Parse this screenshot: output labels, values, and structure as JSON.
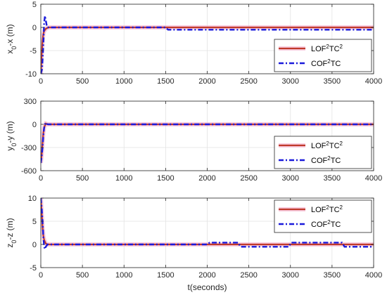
{
  "chart_data": [
    {
      "type": "line",
      "ylabel_base": "x",
      "ylabel_sub": "0",
      "ylabel_rest": "-x (m)",
      "xlim": [
        0,
        4000
      ],
      "ylim": [
        -10,
        5
      ],
      "xticks": [
        0,
        500,
        1000,
        1500,
        2000,
        2500,
        3000,
        3500,
        4000
      ],
      "yticks": [
        -10,
        -5,
        0,
        5
      ],
      "grid": true,
      "legend": "lower-right",
      "series": [
        {
          "name_base": "LOF",
          "name_sup1": "2",
          "name_mid": "TC",
          "name_sup2": "2",
          "color": "#c0392b",
          "x": [
            0,
            10,
            20,
            30,
            40,
            60,
            80,
            100,
            150,
            4000
          ],
          "y": [
            -10,
            -6,
            -3,
            -1.5,
            -0.8,
            -0.3,
            -0.1,
            0,
            0,
            0
          ]
        },
        {
          "name_base": "COF",
          "name_sup1": "2",
          "name_mid": "TC",
          "name_sup2": "",
          "color": "#1a1adb",
          "x": [
            0,
            15,
            30,
            40,
            50,
            60,
            70,
            80,
            100,
            1500,
            1530,
            4000
          ],
          "y": [
            -10,
            -9,
            -4,
            1,
            2.5,
            1.5,
            0.5,
            0,
            0,
            0,
            -0.5,
            -0.5
          ]
        }
      ]
    },
    {
      "type": "line",
      "ylabel_base": "y",
      "ylabel_sub": "0",
      "ylabel_rest": "-y (m)",
      "xlim": [
        0,
        4000
      ],
      "ylim": [
        -600,
        300
      ],
      "xticks": [
        0,
        500,
        1000,
        1500,
        2000,
        2500,
        3000,
        3500,
        4000
      ],
      "yticks": [
        -600,
        -300,
        0,
        300
      ],
      "grid": true,
      "legend": "lower-right",
      "series": [
        {
          "name_base": "LOF",
          "name_sup1": "2",
          "name_mid": "TC",
          "name_sup2": "2",
          "color": "#c0392b",
          "x": [
            0,
            10,
            20,
            30,
            40,
            60,
            80,
            4000
          ],
          "y": [
            -500,
            -400,
            -250,
            -120,
            -40,
            10,
            0,
            0
          ]
        },
        {
          "name_base": "COF",
          "name_sup1": "2",
          "name_mid": "TC",
          "name_sup2": "",
          "color": "#1a1adb",
          "x": [
            0,
            10,
            20,
            30,
            40,
            55,
            70,
            90,
            4000
          ],
          "y": [
            -500,
            -420,
            -300,
            -150,
            -50,
            20,
            5,
            0,
            0
          ]
        }
      ]
    },
    {
      "type": "line",
      "ylabel_base": "z",
      "ylabel_sub": "0",
      "ylabel_rest": "-z (m)",
      "xlabel": "t(seconds)",
      "xlim": [
        0,
        4000
      ],
      "ylim": [
        -5,
        10
      ],
      "xticks": [
        0,
        500,
        1000,
        1500,
        2000,
        2500,
        3000,
        3500,
        4000
      ],
      "yticks": [
        -5,
        0,
        5,
        10
      ],
      "grid": true,
      "legend": "upper-right",
      "series": [
        {
          "name_base": "LOF",
          "name_sup1": "2",
          "name_mid": "TC",
          "name_sup2": "2",
          "color": "#c0392b",
          "x": [
            0,
            10,
            20,
            30,
            40,
            60,
            80,
            4000
          ],
          "y": [
            10,
            7,
            4,
            2,
            1,
            0.2,
            0,
            0
          ]
        },
        {
          "name_base": "COF",
          "name_sup1": "2",
          "name_mid": "TC",
          "name_sup2": "",
          "color": "#1a1adb",
          "x": [
            0,
            10,
            20,
            30,
            40,
            50,
            60,
            80,
            2000,
            2030,
            2370,
            2400,
            2980,
            3010,
            3620,
            3650,
            4000
          ],
          "y": [
            10,
            8,
            5,
            2,
            -0.5,
            -1,
            -0.5,
            0,
            0,
            0.4,
            0.4,
            -0.5,
            -0.5,
            0.4,
            0.4,
            -0.5,
            -0.5
          ]
        }
      ]
    }
  ]
}
